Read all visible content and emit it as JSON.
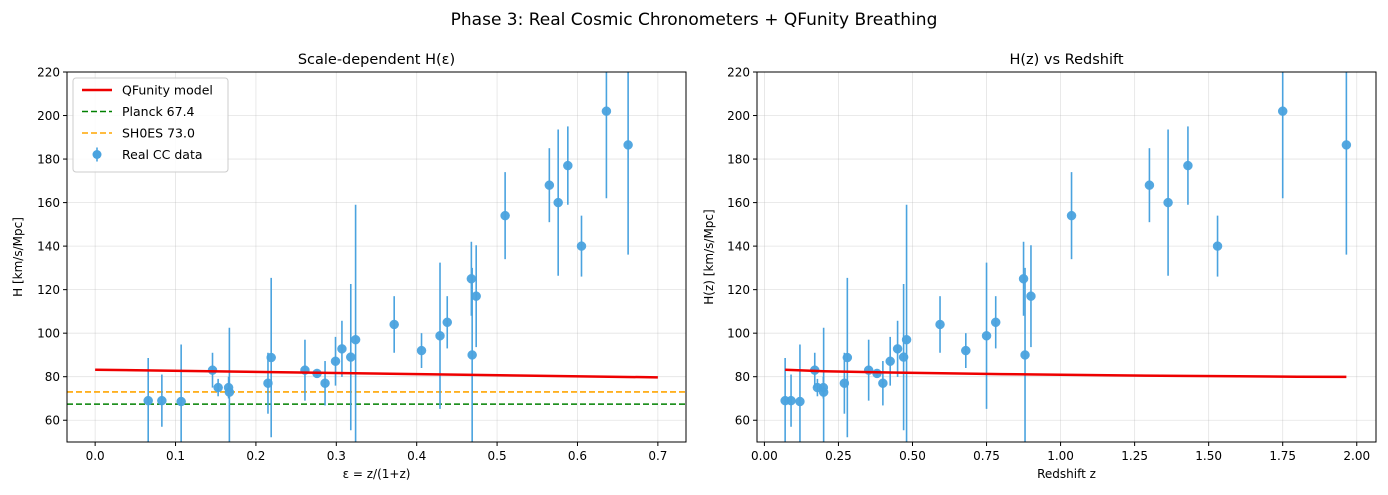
{
  "figure": {
    "title": "Phase 3: Real Cosmic Chronometers + QFunity Breathing"
  },
  "colors": {
    "data": "#4aa3df",
    "model": "#ee0000",
    "planck": "#008000",
    "shoes": "#ffa500"
  },
  "chart_data": [
    {
      "type": "scatter",
      "title": "Scale-dependent H(ε)",
      "xlabel": "ε = z/(1+z)",
      "ylabel": "H [km/s/Mpc]",
      "xlim": [
        -0.035,
        0.735
      ],
      "ylim": [
        50,
        220
      ],
      "xticks": [
        0.0,
        0.1,
        0.2,
        0.3,
        0.4,
        0.5,
        0.6,
        0.7
      ],
      "xtick_labels": [
        "0.0",
        "0.1",
        "0.2",
        "0.3",
        "0.4",
        "0.5",
        "0.6",
        "0.7"
      ],
      "yticks": [
        60,
        80,
        100,
        120,
        140,
        160,
        180,
        200,
        220
      ],
      "ytick_labels": [
        "60",
        "80",
        "100",
        "120",
        "140",
        "160",
        "180",
        "200",
        "220"
      ],
      "grid": true,
      "legend_position": "top-left",
      "series": [
        {
          "name": "Real CC data",
          "kind": "errorbar",
          "points": [
            {
              "x": 0.066,
              "y": 69,
              "err": 19.6
            },
            {
              "x": 0.083,
              "y": 69,
              "err": 12
            },
            {
              "x": 0.107,
              "y": 68.6,
              "err": 26.2
            },
            {
              "x": 0.146,
              "y": 83,
              "err": 8
            },
            {
              "x": 0.153,
              "y": 75,
              "err": 4
            },
            {
              "x": 0.166,
              "y": 75,
              "err": 5
            },
            {
              "x": 0.167,
              "y": 72.9,
              "err": 29.6
            },
            {
              "x": 0.215,
              "y": 77,
              "err": 14
            },
            {
              "x": 0.219,
              "y": 88.8,
              "err": 36.6
            },
            {
              "x": 0.261,
              "y": 83,
              "err": 14
            },
            {
              "x": 0.276,
              "y": 81.5,
              "err": 1.9
            },
            {
              "x": 0.286,
              "y": 77,
              "err": 10.2
            },
            {
              "x": 0.299,
              "y": 87.1,
              "err": 11.2
            },
            {
              "x": 0.307,
              "y": 92.8,
              "err": 12.9
            },
            {
              "x": 0.318,
              "y": 89,
              "err": 33.6
            },
            {
              "x": 0.324,
              "y": 97,
              "err": 62
            },
            {
              "x": 0.372,
              "y": 104,
              "err": 13
            },
            {
              "x": 0.406,
              "y": 92,
              "err": 8
            },
            {
              "x": 0.429,
              "y": 98.8,
              "err": 33.6
            },
            {
              "x": 0.438,
              "y": 105,
              "err": 12
            },
            {
              "x": 0.468,
              "y": 125,
              "err": 17
            },
            {
              "x": 0.469,
              "y": 90,
              "err": 40
            },
            {
              "x": 0.474,
              "y": 117,
              "err": 23.4
            },
            {
              "x": 0.51,
              "y": 154,
              "err": 20
            },
            {
              "x": 0.565,
              "y": 168,
              "err": 17
            },
            {
              "x": 0.576,
              "y": 160,
              "err": 33.6
            },
            {
              "x": 0.588,
              "y": 177,
              "err": 18
            },
            {
              "x": 0.605,
              "y": 140,
              "err": 14
            },
            {
              "x": 0.636,
              "y": 202,
              "err": 40
            },
            {
              "x": 0.663,
              "y": 186.5,
              "err": 50.4
            }
          ]
        },
        {
          "name": "QFunity model",
          "kind": "line",
          "x": [
            0.0,
            0.7
          ],
          "y": [
            83.2,
            79.7
          ]
        },
        {
          "name": "Planck 67.4",
          "kind": "hline",
          "y": 67.4
        },
        {
          "name": "SH0ES 73.0",
          "kind": "hline",
          "y": 73.0
        }
      ]
    },
    {
      "type": "scatter",
      "title": "H(z) vs Redshift",
      "xlabel": "Redshift z",
      "ylabel": "H(z) [km/s/Mpc]",
      "xlim": [
        -0.025,
        2.065
      ],
      "ylim": [
        50,
        220
      ],
      "xticks": [
        0.0,
        0.25,
        0.5,
        0.75,
        1.0,
        1.25,
        1.5,
        1.75,
        2.0
      ],
      "xtick_labels": [
        "0.00",
        "0.25",
        "0.50",
        "0.75",
        "1.00",
        "1.25",
        "1.50",
        "1.75",
        "2.00"
      ],
      "yticks": [
        60,
        80,
        100,
        120,
        140,
        160,
        180,
        200,
        220
      ],
      "ytick_labels": [
        "60",
        "80",
        "100",
        "120",
        "140",
        "160",
        "180",
        "200",
        "220"
      ],
      "grid": true,
      "series": [
        {
          "name": "",
          "kind": "errorbar",
          "points": [
            {
              "x": 0.07,
              "y": 69,
              "err": 19.6
            },
            {
              "x": 0.09,
              "y": 69,
              "err": 12
            },
            {
              "x": 0.12,
              "y": 68.6,
              "err": 26.2
            },
            {
              "x": 0.17,
              "y": 83,
              "err": 8
            },
            {
              "x": 0.179,
              "y": 75,
              "err": 4
            },
            {
              "x": 0.199,
              "y": 75,
              "err": 5
            },
            {
              "x": 0.2,
              "y": 72.9,
              "err": 29.6
            },
            {
              "x": 0.27,
              "y": 77,
              "err": 14
            },
            {
              "x": 0.28,
              "y": 88.8,
              "err": 36.6
            },
            {
              "x": 0.352,
              "y": 83,
              "err": 14
            },
            {
              "x": 0.3802,
              "y": 81.5,
              "err": 1.9
            },
            {
              "x": 0.4,
              "y": 77,
              "err": 10.2
            },
            {
              "x": 0.4247,
              "y": 87.1,
              "err": 11.2
            },
            {
              "x": 0.4497,
              "y": 92.8,
              "err": 12.9
            },
            {
              "x": 0.47,
              "y": 89,
              "err": 33.6
            },
            {
              "x": 0.48,
              "y": 97,
              "err": 62
            },
            {
              "x": 0.593,
              "y": 104,
              "err": 13
            },
            {
              "x": 0.68,
              "y": 92,
              "err": 8
            },
            {
              "x": 0.75,
              "y": 98.8,
              "err": 33.6
            },
            {
              "x": 0.781,
              "y": 105,
              "err": 12
            },
            {
              "x": 0.875,
              "y": 125,
              "err": 17
            },
            {
              "x": 0.88,
              "y": 90,
              "err": 40
            },
            {
              "x": 0.9,
              "y": 117,
              "err": 23.4
            },
            {
              "x": 1.037,
              "y": 154,
              "err": 20
            },
            {
              "x": 1.3,
              "y": 168,
              "err": 17
            },
            {
              "x": 1.363,
              "y": 160,
              "err": 33.6
            },
            {
              "x": 1.43,
              "y": 177,
              "err": 18
            },
            {
              "x": 1.53,
              "y": 140,
              "err": 14
            },
            {
              "x": 1.75,
              "y": 202,
              "err": 40
            },
            {
              "x": 1.965,
              "y": 186.5,
              "err": 50.4
            }
          ]
        },
        {
          "name": "",
          "kind": "line",
          "x": [
            0.07,
            0.2,
            0.4,
            0.6,
            0.8,
            1.0,
            1.2,
            1.4,
            1.6,
            1.8,
            1.965
          ],
          "y": [
            83.2,
            82.5,
            82.0,
            81.6,
            81.2,
            80.9,
            80.6,
            80.4,
            80.2,
            80.0,
            79.9
          ]
        }
      ]
    }
  ]
}
